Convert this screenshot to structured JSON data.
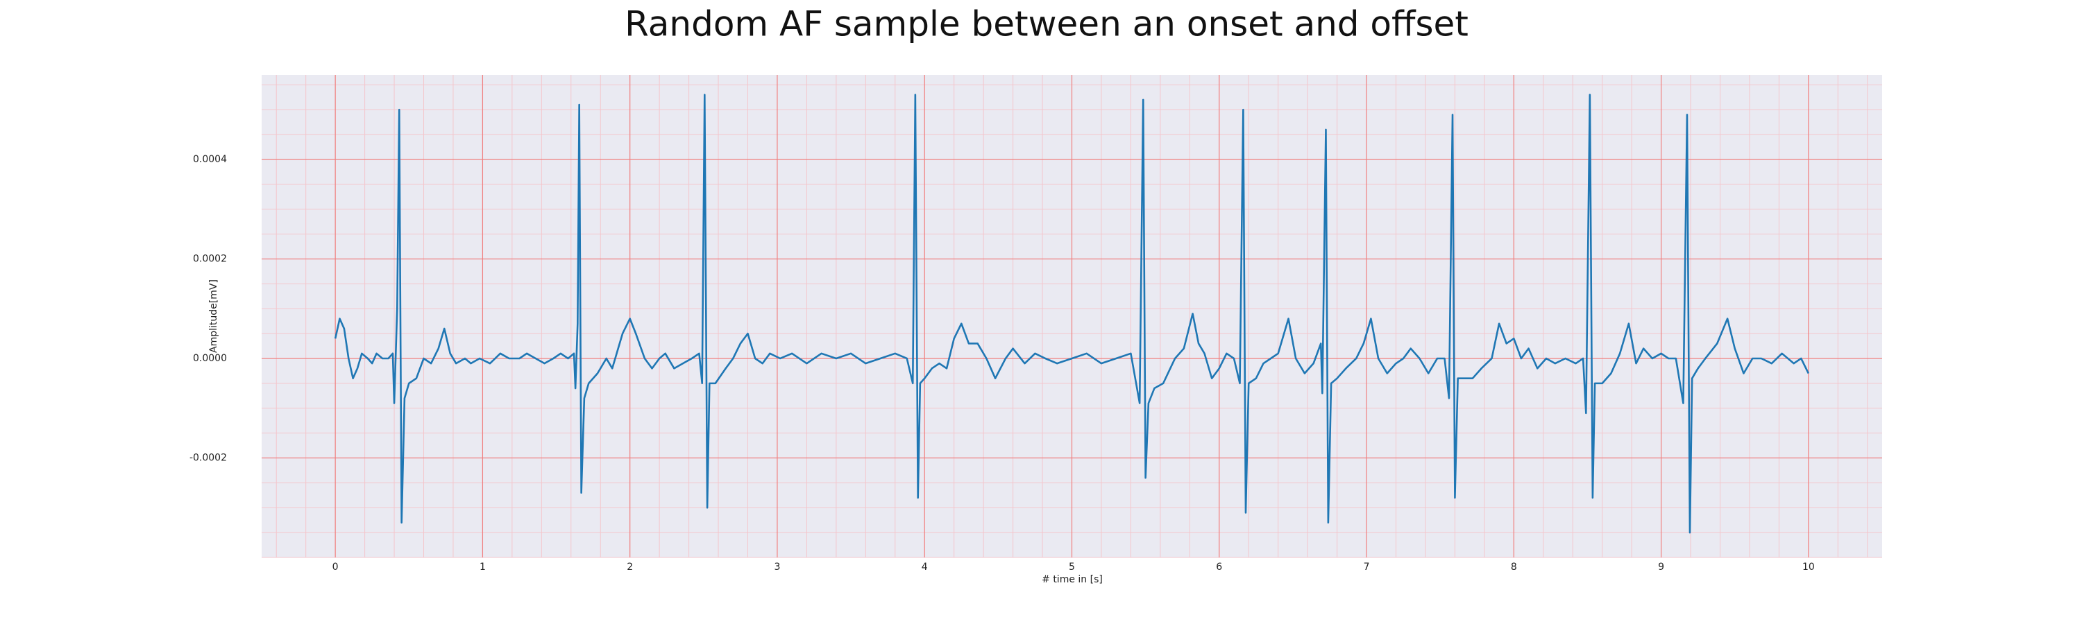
{
  "chart_data": {
    "type": "line",
    "title": "Random AF sample between an onset and offset",
    "xlabel": "# time in [s]",
    "ylabel": "Amplitude[mV]",
    "color": "#1f77b4",
    "xlim": [
      -0.5,
      10.5
    ],
    "ylim": [
      -0.0004,
      0.00057
    ],
    "xticks": [
      0,
      1,
      2,
      3,
      4,
      5,
      6,
      7,
      8,
      9,
      10
    ],
    "yticks": [
      -0.0002,
      {
        "value": 0,
        "label": "0.0000"
      },
      0.0002,
      0.0004
    ],
    "grid": true,
    "grid_color": "#f08080",
    "minor_grid_color": "#f4c6cc",
    "xminor_per_major": 5,
    "yminor_per_major": 4,
    "x": [
      0,
      0.03,
      0.06,
      0.09,
      0.12,
      0.15,
      0.18,
      0.22,
      0.25,
      0.28,
      0.32,
      0.36,
      0.39,
      0.4,
      0.42,
      0.434,
      0.45,
      0.47,
      0.5,
      0.55,
      0.6,
      0.65,
      0.7,
      0.74,
      0.78,
      0.82,
      0.88,
      0.92,
      0.98,
      1.05,
      1.12,
      1.18,
      1.25,
      1.3,
      1.36,
      1.42,
      1.48,
      1.53,
      1.58,
      1.62,
      1.63,
      1.645,
      1.656,
      1.67,
      1.69,
      1.72,
      1.78,
      1.84,
      1.88,
      1.95,
      2.0,
      2.04,
      2.1,
      2.15,
      2.2,
      2.24,
      2.3,
      2.36,
      2.42,
      2.47,
      2.49,
      2.507,
      2.525,
      2.54,
      2.58,
      2.65,
      2.7,
      2.75,
      2.8,
      2.85,
      2.9,
      2.95,
      3.02,
      3.1,
      3.2,
      3.3,
      3.4,
      3.5,
      3.6,
      3.7,
      3.8,
      3.88,
      3.92,
      3.937,
      3.955,
      3.97,
      4.0,
      4.05,
      4.1,
      4.15,
      4.2,
      4.25,
      4.3,
      4.36,
      4.42,
      4.48,
      4.55,
      4.6,
      4.68,
      4.75,
      4.82,
      4.9,
      5.0,
      5.1,
      5.2,
      5.3,
      5.4,
      5.46,
      5.484,
      5.5,
      5.52,
      5.56,
      5.62,
      5.7,
      5.76,
      5.82,
      5.86,
      5.9,
      5.95,
      6.0,
      6.05,
      6.1,
      6.14,
      6.163,
      6.18,
      6.2,
      6.25,
      6.3,
      6.35,
      6.4,
      6.47,
      6.52,
      6.58,
      6.64,
      6.69,
      6.7,
      6.724,
      6.74,
      6.76,
      6.8,
      6.86,
      6.93,
      6.98,
      7.03,
      7.08,
      7.14,
      7.2,
      7.25,
      7.3,
      7.36,
      7.42,
      7.48,
      7.53,
      7.56,
      7.584,
      7.6,
      7.62,
      7.66,
      7.72,
      7.78,
      7.85,
      7.9,
      7.95,
      8.0,
      8.05,
      8.1,
      8.16,
      8.22,
      8.28,
      8.35,
      8.42,
      8.47,
      8.49,
      8.516,
      8.535,
      8.55,
      8.6,
      8.66,
      8.72,
      8.78,
      8.83,
      8.88,
      8.94,
      9.0,
      9.05,
      9.1,
      9.15,
      9.176,
      9.195,
      9.21,
      9.25,
      9.3,
      9.38,
      9.45,
      9.5,
      9.56,
      9.62,
      9.68,
      9.75,
      9.82,
      9.9,
      9.95,
      10.0
    ],
    "values": [
      4e-05,
      8e-05,
      6e-05,
      0.0,
      -4e-05,
      -2e-05,
      1e-05,
      0.0,
      -1e-05,
      1e-05,
      0.0,
      0.0,
      1e-05,
      -9e-05,
      0.0001,
      0.0005,
      -0.00033,
      -8e-05,
      -5e-05,
      -4e-05,
      0.0,
      -1e-05,
      2e-05,
      6e-05,
      1e-05,
      -1e-05,
      0.0,
      -1e-05,
      0.0,
      -1e-05,
      1e-05,
      0.0,
      0.0,
      1e-05,
      0.0,
      -1e-05,
      0.0,
      1e-05,
      0.0,
      1e-05,
      -6e-05,
      7e-05,
      0.00051,
      -0.00027,
      -8e-05,
      -5e-05,
      -3e-05,
      0.0,
      -2e-05,
      5e-05,
      8e-05,
      5e-05,
      0.0,
      -2e-05,
      0.0,
      1e-05,
      -2e-05,
      -1e-05,
      0.0,
      1e-05,
      -5e-05,
      0.00053,
      -0.0003,
      -5e-05,
      -5e-05,
      -2e-05,
      0.0,
      3e-05,
      5e-05,
      0.0,
      -1e-05,
      1e-05,
      0.0,
      1e-05,
      -1e-05,
      1e-05,
      0.0,
      1e-05,
      -1e-05,
      0.0,
      1e-05,
      0.0,
      -5e-05,
      0.00053,
      -0.00028,
      -5e-05,
      -4e-05,
      -2e-05,
      -1e-05,
      -2e-05,
      4e-05,
      7e-05,
      3e-05,
      3e-05,
      0.0,
      -4e-05,
      0.0,
      2e-05,
      -1e-05,
      1e-05,
      0.0,
      -1e-05,
      0.0,
      1e-05,
      -1e-05,
      0.0,
      1e-05,
      -9e-05,
      0.00052,
      -0.00024,
      -9e-05,
      -6e-05,
      -5e-05,
      0.0,
      2e-05,
      9e-05,
      3e-05,
      1e-05,
      -4e-05,
      -2e-05,
      1e-05,
      0.0,
      -5e-05,
      0.0005,
      -0.00031,
      -5e-05,
      -4e-05,
      -1e-05,
      0.0,
      1e-05,
      8e-05,
      0.0,
      -3e-05,
      -1e-05,
      3e-05,
      -7e-05,
      0.00046,
      -0.00033,
      -5e-05,
      -4e-05,
      -2e-05,
      0.0,
      3e-05,
      8e-05,
      0.0,
      -3e-05,
      -1e-05,
      0.0,
      2e-05,
      0.0,
      -3e-05,
      0.0,
      0.0,
      -8e-05,
      0.00049,
      -0.00028,
      -4e-05,
      -4e-05,
      -4e-05,
      -2e-05,
      0.0,
      7e-05,
      3e-05,
      4e-05,
      0.0,
      2e-05,
      -2e-05,
      0.0,
      -1e-05,
      0.0,
      -1e-05,
      0.0,
      -0.00011,
      0.00053,
      -0.00028,
      -5e-05,
      -5e-05,
      -3e-05,
      1e-05,
      7e-05,
      -1e-05,
      2e-05,
      0.0,
      1e-05,
      0.0,
      0.0,
      -9e-05,
      0.00049,
      -0.00035,
      -4e-05,
      -2e-05,
      0.0,
      3e-05,
      8e-05,
      2e-05,
      -3e-05,
      0.0,
      0.0,
      -1e-05,
      1e-05,
      -1e-05,
      0.0,
      -3e-05
    ]
  }
}
